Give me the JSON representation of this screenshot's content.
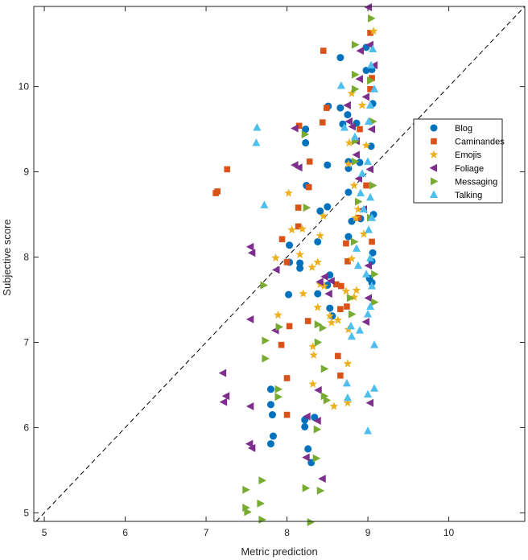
{
  "chart_data": {
    "type": "scatter",
    "title": "",
    "xlabel": "Metric prediction",
    "ylabel": "Subjective score",
    "xlim": [
      4.87,
      10.94
    ],
    "ylim": [
      4.9,
      10.94
    ],
    "xticks": [
      "5",
      "6",
      "7",
      "8",
      "9",
      "10"
    ],
    "yticks": [
      "5",
      "6",
      "7",
      "8",
      "9",
      "10"
    ],
    "grid": false,
    "legend_position": "right",
    "reference_line": "y = x (dashed)",
    "series": [
      {
        "name": "Blog",
        "marker": "circle",
        "color": "#0072BD",
        "points": [
          [
            8.66,
            10.34
          ],
          [
            8.51,
            9.77
          ],
          [
            8.23,
            9.5
          ],
          [
            8.23,
            9.34
          ],
          [
            8.5,
            9.08
          ],
          [
            8.76,
            9.12
          ],
          [
            8.76,
            9.04
          ],
          [
            8.9,
            9.11
          ],
          [
            8.24,
            8.84
          ],
          [
            8.41,
            8.54
          ],
          [
            8.5,
            8.59
          ],
          [
            8.76,
            8.76
          ],
          [
            8.03,
            8.14
          ],
          [
            8.38,
            8.18
          ],
          [
            8.03,
            7.94
          ],
          [
            8.16,
            7.93
          ],
          [
            8.16,
            7.87
          ],
          [
            8.8,
            8.42
          ],
          [
            8.91,
            8.45
          ],
          [
            8.76,
            8.24
          ],
          [
            8.66,
            9.75
          ],
          [
            8.75,
            9.67
          ],
          [
            8.69,
            9.56
          ],
          [
            8.86,
            9.57
          ],
          [
            8.98,
            10.46
          ],
          [
            8.98,
            10.19
          ],
          [
            8.02,
            7.56
          ],
          [
            8.38,
            7.57
          ],
          [
            8.53,
            7.4
          ],
          [
            8.56,
            7.31
          ],
          [
            8.53,
            7.79
          ],
          [
            8.5,
            7.67
          ],
          [
            7.8,
            6.45
          ],
          [
            7.8,
            6.27
          ],
          [
            7.82,
            6.15
          ],
          [
            7.83,
            5.9
          ],
          [
            7.8,
            5.81
          ],
          [
            8.22,
            6.09
          ],
          [
            8.22,
            6.01
          ],
          [
            8.34,
            6.12
          ],
          [
            8.26,
            5.75
          ],
          [
            8.3,
            5.59
          ],
          [
            9.05,
            7.95
          ],
          [
            9.06,
            8.05
          ],
          [
            9.05,
            7.7
          ],
          [
            9.07,
            8.5
          ],
          [
            9.04,
            9.3
          ],
          [
            9.06,
            9.8
          ],
          [
            9.05,
            10.2
          ],
          [
            9.02,
            7.75
          ]
        ]
      },
      {
        "name": "Caminandes",
        "marker": "square",
        "color": "#D95319",
        "points": [
          [
            8.45,
            10.42
          ],
          [
            8.49,
            9.75
          ],
          [
            8.15,
            9.54
          ],
          [
            8.44,
            9.58
          ],
          [
            8.28,
            9.12
          ],
          [
            7.26,
            9.03
          ],
          [
            7.12,
            8.75
          ],
          [
            7.14,
            8.77
          ],
          [
            8.14,
            8.58
          ],
          [
            8.27,
            8.82
          ],
          [
            7.94,
            8.21
          ],
          [
            8.14,
            8.36
          ],
          [
            8.0,
            7.94
          ],
          [
            8.61,
            7.68
          ],
          [
            7.93,
            6.97
          ],
          [
            8.03,
            7.19
          ],
          [
            8.0,
            6.58
          ],
          [
            8.26,
            7.25
          ],
          [
            8.66,
            7.39
          ],
          [
            8.74,
            7.42
          ],
          [
            8.0,
            6.15
          ],
          [
            8.66,
            6.61
          ],
          [
            8.63,
            6.84
          ],
          [
            9.03,
            10.63
          ],
          [
            8.9,
            9.5
          ],
          [
            8.75,
            7.95
          ],
          [
            8.67,
            7.66
          ],
          [
            8.88,
            8.46
          ],
          [
            8.98,
            8.84
          ],
          [
            9.05,
            8.18
          ],
          [
            9.03,
            9.97
          ],
          [
            9.05,
            10.1
          ],
          [
            8.73,
            8.16
          ]
        ]
      },
      {
        "name": "Emojis",
        "marker": "star",
        "color": "#EDB120",
        "points": [
          [
            9.07,
            10.65
          ],
          [
            8.8,
            9.92
          ],
          [
            8.77,
            9.34
          ],
          [
            8.76,
            9.09
          ],
          [
            8.83,
            8.84
          ],
          [
            8.02,
            8.75
          ],
          [
            8.85,
            8.46
          ],
          [
            8.45,
            8.48
          ],
          [
            8.06,
            8.32
          ],
          [
            8.19,
            8.33
          ],
          [
            8.41,
            8.25
          ],
          [
            8.16,
            8.03
          ],
          [
            7.86,
            7.99
          ],
          [
            8.38,
            7.94
          ],
          [
            8.8,
            7.98
          ],
          [
            8.41,
            7.68
          ],
          [
            8.2,
            7.57
          ],
          [
            8.73,
            7.6
          ],
          [
            8.86,
            7.61
          ],
          [
            8.38,
            7.41
          ],
          [
            7.89,
            7.32
          ],
          [
            8.53,
            7.31
          ],
          [
            8.55,
            7.23
          ],
          [
            8.32,
            6.95
          ],
          [
            8.33,
            6.85
          ],
          [
            8.75,
            6.75
          ],
          [
            8.32,
            6.51
          ],
          [
            8.75,
            6.29
          ],
          [
            8.58,
            6.25
          ],
          [
            8.76,
            7.15
          ],
          [
            8.95,
            8.27
          ],
          [
            8.98,
            9.31
          ],
          [
            8.93,
            9.78
          ],
          [
            8.46,
            7.66
          ],
          [
            8.63,
            7.26
          ],
          [
            8.83,
            7.53
          ],
          [
            8.31,
            7.88
          ],
          [
            8.88,
            8.56
          ]
        ]
      },
      {
        "name": "Foliage",
        "marker": "triangle-left",
        "color": "#7E2F8E",
        "points": [
          [
            9.01,
            10.93
          ],
          [
            9.03,
            10.49
          ],
          [
            8.91,
            10.42
          ],
          [
            8.9,
            10.09
          ],
          [
            8.75,
            9.78
          ],
          [
            8.77,
            9.59
          ],
          [
            8.81,
            9.53
          ],
          [
            8.1,
            9.51
          ],
          [
            8.1,
            9.08
          ],
          [
            8.15,
            9.05
          ],
          [
            8.86,
            9.36
          ],
          [
            8.86,
            9.2
          ],
          [
            8.89,
            8.92
          ],
          [
            7.55,
            8.12
          ],
          [
            7.57,
            8.05
          ],
          [
            7.87,
            7.85
          ],
          [
            8.47,
            7.77
          ],
          [
            8.55,
            7.72
          ],
          [
            8.41,
            7.71
          ],
          [
            8.52,
            7.57
          ],
          [
            7.55,
            7.27
          ],
          [
            7.86,
            7.14
          ],
          [
            7.21,
            6.64
          ],
          [
            7.25,
            6.37
          ],
          [
            7.22,
            6.3
          ],
          [
            7.55,
            6.25
          ],
          [
            7.54,
            5.81
          ],
          [
            7.57,
            5.76
          ],
          [
            8.25,
            6.13
          ],
          [
            8.38,
            6.08
          ],
          [
            8.39,
            6.44
          ],
          [
            8.24,
            5.65
          ],
          [
            8.44,
            5.4
          ],
          [
            9.03,
            6.29
          ],
          [
            8.98,
            7.24
          ],
          [
            9.01,
            7.52
          ],
          [
            9.05,
            9.5
          ],
          [
            8.98,
            9.88
          ],
          [
            9.08,
            10.25
          ],
          [
            8.95,
            8.56
          ],
          [
            9.03,
            9.03
          ],
          [
            9.01,
            7.9
          ]
        ]
      },
      {
        "name": "Messaging",
        "marker": "triangle-right",
        "color": "#77AC30",
        "points": [
          [
            9.04,
            10.8
          ],
          [
            8.84,
            10.49
          ],
          [
            8.84,
            10.14
          ],
          [
            8.84,
            9.97
          ],
          [
            8.22,
            9.44
          ],
          [
            8.24,
            8.58
          ],
          [
            8.84,
            9.36
          ],
          [
            8.84,
            9.12
          ],
          [
            9.06,
            9.59
          ],
          [
            9.06,
            8.84
          ],
          [
            7.71,
            7.67
          ],
          [
            7.73,
            7.02
          ],
          [
            7.9,
            7.18
          ],
          [
            7.73,
            6.81
          ],
          [
            7.89,
            6.45
          ],
          [
            7.89,
            6.36
          ],
          [
            8.38,
            7.21
          ],
          [
            8.44,
            7.17
          ],
          [
            8.38,
            7.0
          ],
          [
            8.46,
            6.69
          ],
          [
            8.46,
            6.37
          ],
          [
            8.49,
            6.32
          ],
          [
            8.37,
            5.98
          ],
          [
            8.36,
            5.64
          ],
          [
            7.69,
            5.38
          ],
          [
            7.49,
            5.27
          ],
          [
            8.23,
            5.29
          ],
          [
            8.41,
            5.26
          ],
          [
            7.49,
            5.06
          ],
          [
            7.51,
            5.01
          ],
          [
            7.67,
            5.11
          ],
          [
            7.69,
            4.92
          ],
          [
            8.29,
            4.89
          ],
          [
            8.8,
            7.33
          ],
          [
            8.78,
            7.52
          ],
          [
            9.08,
            7.47
          ],
          [
            8.83,
            8.18
          ],
          [
            8.88,
            8.65
          ],
          [
            9.08,
            7.8
          ],
          [
            9.03,
            8.46
          ],
          [
            9.03,
            10.07
          ]
        ]
      },
      {
        "name": "Talking",
        "marker": "triangle-up",
        "color": "#4DBEEE",
        "points": [
          [
            7.63,
            9.52
          ],
          [
            7.62,
            9.34
          ],
          [
            7.72,
            8.61
          ],
          [
            8.67,
            10.01
          ],
          [
            8.71,
            9.52
          ],
          [
            8.86,
            8.1
          ],
          [
            9.01,
            8.32
          ],
          [
            8.79,
            7.19
          ],
          [
            8.8,
            7.07
          ],
          [
            8.74,
            6.52
          ],
          [
            8.75,
            6.35
          ],
          [
            9.0,
            6.39
          ],
          [
            9.0,
            5.96
          ],
          [
            9.08,
            6.46
          ],
          [
            9.08,
            6.97
          ],
          [
            8.9,
            7.14
          ],
          [
            9.0,
            7.33
          ],
          [
            8.84,
            9.41
          ],
          [
            9.04,
            10.25
          ],
          [
            9.03,
            9.78
          ],
          [
            9.0,
            9.12
          ],
          [
            9.03,
            8.7
          ],
          [
            9.05,
            8.46
          ],
          [
            9.03,
            7.99
          ],
          [
            9.05,
            7.66
          ],
          [
            8.91,
            8.75
          ],
          [
            8.95,
            8.56
          ],
          [
            8.88,
            7.9
          ],
          [
            8.93,
            8.98
          ],
          [
            9.01,
            9.59
          ],
          [
            9.08,
            9.97
          ],
          [
            9.06,
            10.44
          ],
          [
            8.98,
            7.8
          ],
          [
            9.03,
            7.42
          ]
        ]
      }
    ]
  }
}
